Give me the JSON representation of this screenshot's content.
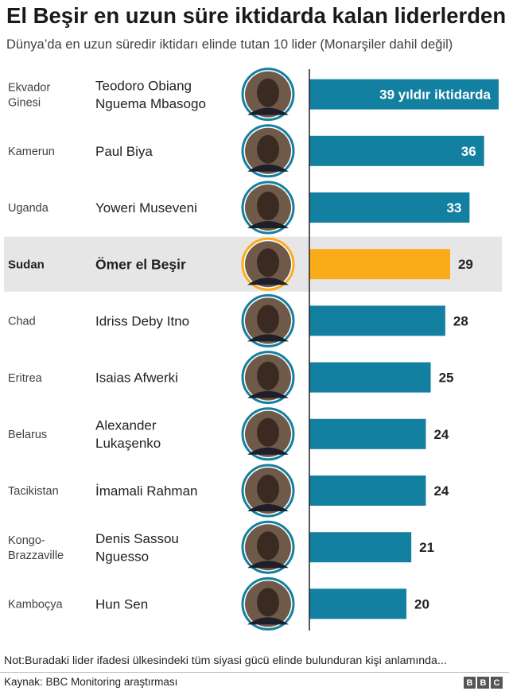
{
  "title": "El Beşir en uzun süre iktidarda kalan liderlerden",
  "subtitle": "Dünya’da en uzun süredir iktidarı elinde tutan 10 lider (Monarşiler dahil değil)",
  "note": "Not:Buradaki lider ifadesi ülkesindeki tüm siyasi gücü elinde bulunduran kişi anlamında...",
  "source": "Kaynak: BBC Monitoring araştırması",
  "logo": [
    "B",
    "B",
    "C"
  ],
  "colors": {
    "bar": "#1380A1",
    "highlight_bar": "#FAAB18",
    "highlight_row": "#e6e6e6",
    "photo_ring": "#1380A1",
    "axis": "#222222"
  },
  "chart_data": {
    "type": "bar",
    "orientation": "horizontal",
    "highlight_index": 3,
    "first_label_suffix": " yıldır iktidarda",
    "xlim": [
      0,
      39
    ],
    "rows": [
      {
        "country": [
          "Ekvador",
          "Ginesi"
        ],
        "leader": [
          "Teodoro Obiang",
          "Nguema Mbasogo"
        ],
        "value": 39,
        "label": "39 yıldır iktidarda"
      },
      {
        "country": [
          "Kamerun"
        ],
        "leader": [
          "Paul Biya"
        ],
        "value": 36,
        "label": "36"
      },
      {
        "country": [
          "Uganda"
        ],
        "leader": [
          "Yoweri Museveni"
        ],
        "value": 33,
        "label": "33"
      },
      {
        "country": [
          "Sudan"
        ],
        "leader": [
          "Ömer el Beşir"
        ],
        "value": 29,
        "label": "29"
      },
      {
        "country": [
          "Chad"
        ],
        "leader": [
          "Idriss Deby Itno"
        ],
        "value": 28,
        "label": "28"
      },
      {
        "country": [
          "Eritrea"
        ],
        "leader": [
          "Isaias Afwerki"
        ],
        "value": 25,
        "label": "25"
      },
      {
        "country": [
          "Belarus"
        ],
        "leader": [
          "Alexander",
          "Lukaşenko"
        ],
        "value": 24,
        "label": "24"
      },
      {
        "country": [
          "Tacikistan"
        ],
        "leader": [
          "İmamali Rahman"
        ],
        "value": 24,
        "label": "24"
      },
      {
        "country": [
          "Kongo-",
          "Brazzaville"
        ],
        "leader": [
          "Denis Sassou",
          "Nguesso"
        ],
        "value": 21,
        "label": "21"
      },
      {
        "country": [
          "Kamboçya"
        ],
        "leader": [
          "Hun Sen"
        ],
        "value": 20,
        "label": "20"
      }
    ]
  }
}
